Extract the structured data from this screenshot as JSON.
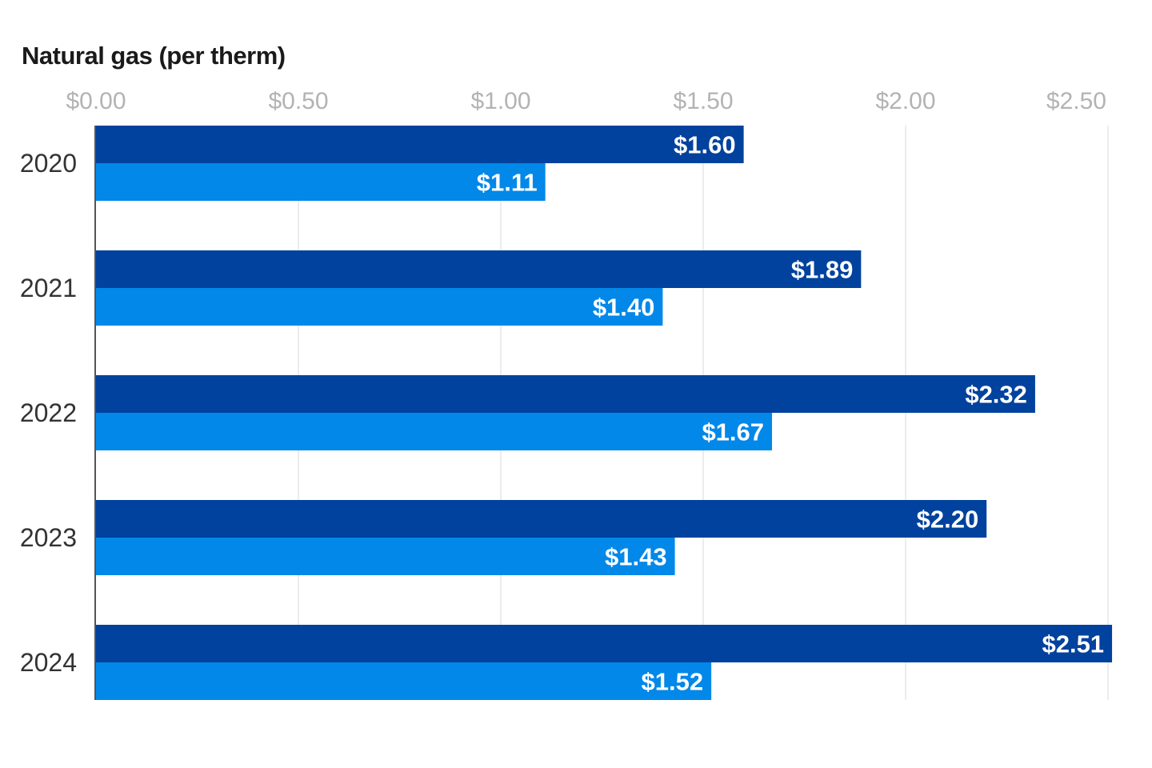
{
  "chart_data": {
    "type": "bar",
    "orientation": "horizontal",
    "title": "Natural gas (per therm)",
    "categories": [
      "2020",
      "2021",
      "2022",
      "2023",
      "2024"
    ],
    "series": [
      {
        "values": [
          1.6,
          1.89,
          2.32,
          2.2,
          2.51
        ],
        "labels": [
          "$1.60",
          "$1.89",
          "$2.32",
          "$2.20",
          "$2.51"
        ],
        "color": "#00429d"
      },
      {
        "values": [
          1.11,
          1.4,
          1.67,
          1.43,
          1.52
        ],
        "labels": [
          "$1.11",
          "$1.40",
          "$1.67",
          "$1.43",
          "$1.52"
        ],
        "color": "#0288e8"
      }
    ],
    "x_ticks": [
      0,
      0.5,
      1.0,
      1.5,
      2.0,
      2.5
    ],
    "x_tick_labels": [
      "$0.00",
      "$0.50",
      "$1.00",
      "$1.50",
      "$2.00",
      "$2.50"
    ],
    "xlim": [
      0,
      2.5
    ],
    "xaxis_position": "top",
    "grid": true
  }
}
